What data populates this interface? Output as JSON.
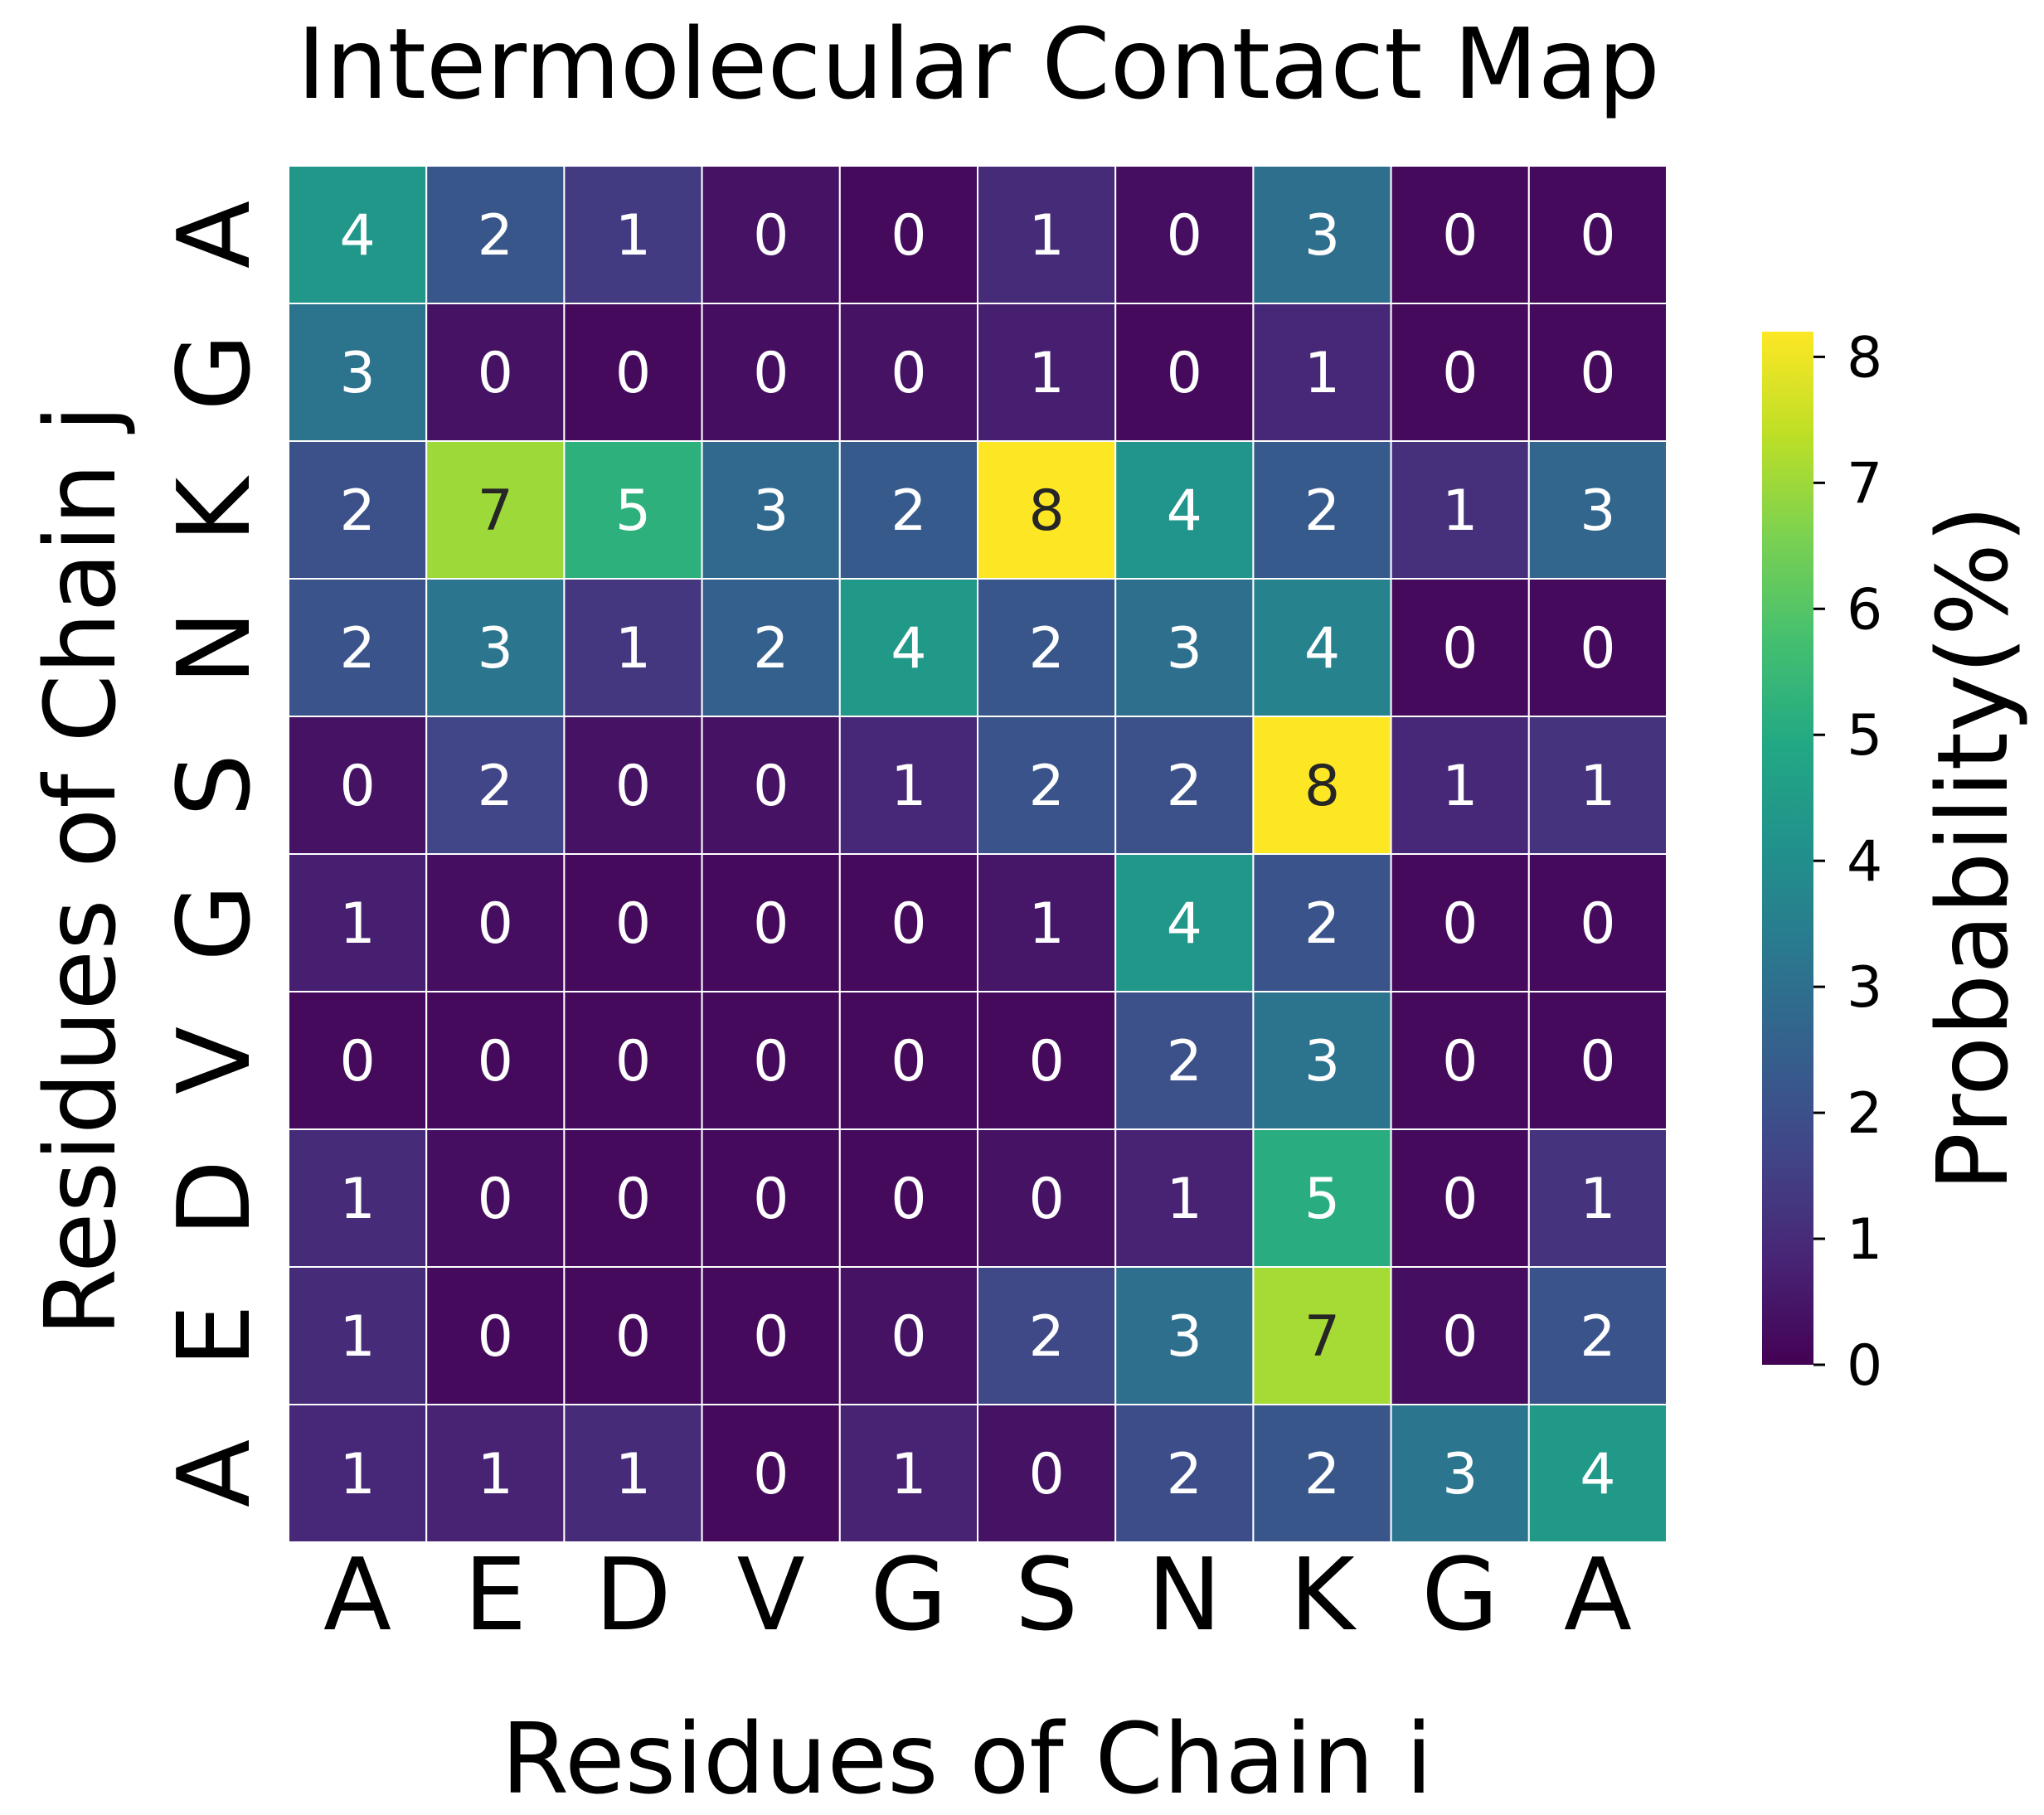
{
  "chart_data": {
    "type": "heatmap",
    "title": "Intermolecular Contact Map",
    "xlabel": "Residues of Chain i",
    "ylabel": "Residues of Chain j",
    "x_categories": [
      "A",
      "E",
      "D",
      "V",
      "G",
      "S",
      "N",
      "K",
      "G",
      "A"
    ],
    "y_categories": [
      "A",
      "G",
      "K",
      "N",
      "S",
      "G",
      "V",
      "D",
      "E",
      "A"
    ],
    "values": [
      [
        4.3,
        2.2,
        1.4,
        0.4,
        0.2,
        1.0,
        0.3,
        3.0,
        0.2,
        0.2
      ],
      [
        3.1,
        0.4,
        0.2,
        0.3,
        0.4,
        0.7,
        0.2,
        0.9,
        0.2,
        0.2
      ],
      [
        2.0,
        7.0,
        5.2,
        2.8,
        2.3,
        8.2,
        4.2,
        2.3,
        1.1,
        2.7
      ],
      [
        2.1,
        3.2,
        1.3,
        2.5,
        4.4,
        2.2,
        3.0,
        3.6,
        0.2,
        0.2
      ],
      [
        0.4,
        1.7,
        0.4,
        0.4,
        0.9,
        2.1,
        2.0,
        8.2,
        0.9,
        1.2
      ],
      [
        0.7,
        0.3,
        0.2,
        0.2,
        0.2,
        0.5,
        4.3,
        2.1,
        0.2,
        0.2
      ],
      [
        0.2,
        0.2,
        0.2,
        0.2,
        0.2,
        0.2,
        2.0,
        3.1,
        0.2,
        0.2
      ],
      [
        1.0,
        0.3,
        0.2,
        0.2,
        0.2,
        0.4,
        0.8,
        5.1,
        0.2,
        1.2
      ],
      [
        1.0,
        0.2,
        0.2,
        0.2,
        0.4,
        1.8,
        3.0,
        7.1,
        0.3,
        2.1
      ],
      [
        0.9,
        0.8,
        1.0,
        0.2,
        0.8,
        0.4,
        1.9,
        2.2,
        3.2,
        4.4
      ]
    ],
    "annotations": [
      [
        "4",
        "2",
        "1",
        "0",
        "0",
        "1",
        "0",
        "3",
        "0",
        "0"
      ],
      [
        "3",
        "0",
        "0",
        "0",
        "0",
        "1",
        "0",
        "1",
        "0",
        "0"
      ],
      [
        "2",
        "7",
        "5",
        "3",
        "2",
        "8",
        "4",
        "2",
        "1",
        "3"
      ],
      [
        "2",
        "3",
        "1",
        "2",
        "4",
        "2",
        "3",
        "4",
        "0",
        "0"
      ],
      [
        "0",
        "2",
        "0",
        "0",
        "1",
        "2",
        "2",
        "8",
        "1",
        "1"
      ],
      [
        "1",
        "0",
        "0",
        "0",
        "0",
        "1",
        "4",
        "2",
        "0",
        "0"
      ],
      [
        "0",
        "0",
        "0",
        "0",
        "0",
        "0",
        "2",
        "3",
        "0",
        "0"
      ],
      [
        "1",
        "0",
        "0",
        "0",
        "0",
        "0",
        "1",
        "5",
        "0",
        "1"
      ],
      [
        "1",
        "0",
        "0",
        "0",
        "0",
        "2",
        "3",
        "7",
        "0",
        "2"
      ],
      [
        "1",
        "1",
        "1",
        "0",
        "1",
        "0",
        "2",
        "2",
        "3",
        "4"
      ]
    ],
    "colormap": "viridis",
    "vmin": 0,
    "vmax": 8.2,
    "colorbar": {
      "label": "Probability(%)",
      "ticks": [
        "0",
        "1",
        "2",
        "3",
        "4",
        "5",
        "6",
        "7",
        "8"
      ],
      "placement": "right"
    },
    "cell_border_color": "#ffffff",
    "grid": false
  }
}
